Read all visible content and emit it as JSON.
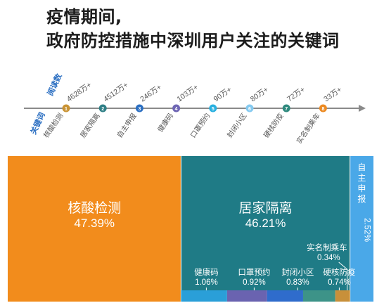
{
  "title_line1": "疫情期间,",
  "title_line2": "政府防控措施中深圳用户关注的关键词",
  "timeline": {
    "reads_label": "阅读数",
    "keyword_label": "关键词",
    "items": [
      {
        "num": "1",
        "keyword": "核酸检测",
        "reads": "4628万+",
        "color": "#c99334"
      },
      {
        "num": "2",
        "keyword": "居家隔离",
        "reads": "4512万+",
        "color": "#2f7f86"
      },
      {
        "num": "3",
        "keyword": "自主申报",
        "reads": "246万+",
        "color": "#2b6fc2"
      },
      {
        "num": "4",
        "keyword": "健康码",
        "reads": "103万+",
        "color": "#6f66b4"
      },
      {
        "num": "5",
        "keyword": "口罩预约",
        "reads": "90万+",
        "color": "#28b0e0"
      },
      {
        "num": "6",
        "keyword": "封闭小区",
        "reads": "80万+",
        "color": "#85caf0"
      },
      {
        "num": "7",
        "keyword": "硬核防疫",
        "reads": "72万+",
        "color": "#2f8a7e"
      },
      {
        "num": "8",
        "keyword": "实名制乘车",
        "reads": "33万+",
        "color": "#ec8a22"
      }
    ]
  },
  "chart_data": {
    "type": "treemap",
    "items": [
      {
        "label": "核酸检测",
        "value": 47.39,
        "display": "47.39%",
        "color": "#f28c1c"
      },
      {
        "label": "居家隔离",
        "value": 46.21,
        "display": "46.21%",
        "color": "#1f7b86"
      },
      {
        "label": "自主申报",
        "value": 2.52,
        "display": "2.52%",
        "color": "#4aa8e8"
      },
      {
        "label": "健康码",
        "value": 1.06,
        "display": "1.06%",
        "color": "#2a9fd8"
      },
      {
        "label": "口罩预约",
        "value": 0.92,
        "display": "0.92%",
        "color": "#6a63b0"
      },
      {
        "label": "封闭小区",
        "value": 0.83,
        "display": "0.83%",
        "color": "#2f6ccc"
      },
      {
        "label": "硬核防疫",
        "value": 0.74,
        "display": "0.74%",
        "color": "#3d9388"
      },
      {
        "label": "实名制乘车",
        "value": 0.34,
        "display": "0.34%",
        "color": "#c8903a"
      }
    ]
  }
}
